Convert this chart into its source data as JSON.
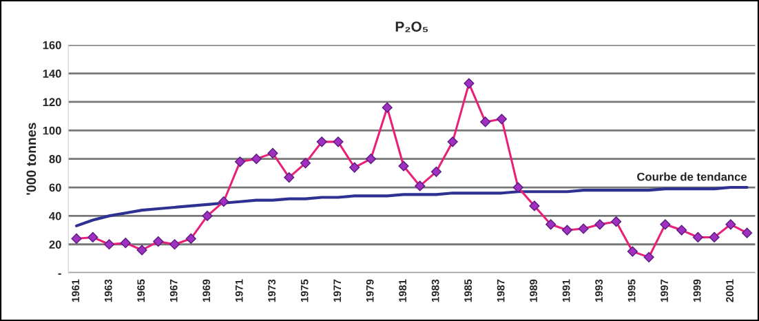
{
  "chart_data": {
    "type": "line",
    "title": "P₂O₅",
    "ylabel": "'000 tonnes",
    "categories": [
      "1961",
      null,
      "1963",
      null,
      "1965",
      null,
      "1967",
      null,
      "1969",
      null,
      "1971",
      null,
      "1973",
      null,
      "1975",
      null,
      "1977",
      null,
      "1979",
      null,
      "1981",
      null,
      "1983",
      null,
      "1985",
      null,
      "1987",
      null,
      "1989",
      null,
      "1991",
      null,
      "1993",
      null,
      "1995",
      null,
      "1997",
      null,
      "1999",
      null,
      "2001",
      null
    ],
    "series": [
      {
        "color": "#e8207a",
        "marker": "diamond",
        "values": [
          24,
          25,
          20,
          21,
          16,
          22,
          20,
          24,
          40,
          50,
          78,
          80,
          84,
          67,
          77,
          92,
          92,
          74,
          80,
          116,
          75,
          61,
          71,
          92,
          133,
          106,
          108,
          60,
          47,
          34,
          30,
          31,
          34,
          36,
          15,
          11,
          34,
          30,
          25,
          25,
          34,
          28
        ]
      },
      {
        "name": "Courbe de tendance",
        "color": "#2e3192",
        "marker": "none",
        "values": [
          33,
          37,
          40,
          42,
          44,
          45,
          46,
          47,
          48,
          49,
          50,
          51,
          51,
          52,
          52,
          53,
          53,
          54,
          54,
          54,
          55,
          55,
          55,
          56,
          56,
          56,
          56,
          57,
          57,
          57,
          57,
          58,
          58,
          58,
          58,
          58,
          59,
          59,
          59,
          59,
          60,
          60
        ]
      }
    ],
    "ylim": [
      0,
      160
    ],
    "yticks": [
      {
        "value": 0,
        "label": "-"
      },
      20,
      40,
      60,
      80,
      100,
      120,
      140,
      160
    ],
    "grid": "y",
    "legend": false,
    "line_style": "solid"
  }
}
